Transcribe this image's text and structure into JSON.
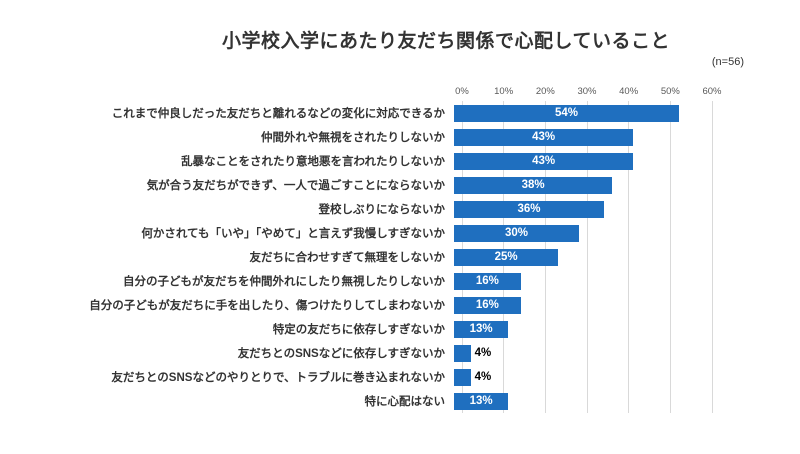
{
  "title": "小学校入学にあたり友だち関係で心配していること",
  "n_label": "(n=56)",
  "chart_data": {
    "type": "bar",
    "orientation": "horizontal",
    "title": "小学校入学にあたり友だち関係で心配していること",
    "sample_size_label": "(n=56)",
    "categories": [
      "これまで仲良しだった友だちと離れるなどの変化に対応できるか",
      "仲間外れや無視をされたりしないか",
      "乱暴なことをされたり意地悪を言われたりしないか",
      "気が合う友だちができず、一人で過ごすことにならないか",
      "登校しぶりにならないか",
      "何かされても「いや」「やめて」と言えず我慢しすぎないか",
      "友だちに合わせすぎて無理をしないか",
      "自分の子どもが友だちを仲間外れにしたり無視したりしないか",
      "自分の子どもが友だちに手を出したり、傷つけたりしてしまわないか",
      "特定の友だちに依存しすぎないか",
      "友だちとのSNSなどに依存しすぎないか",
      "友だちとのSNSなどのやりとりで、トラブルに巻き込まれないか",
      "特に心配はない"
    ],
    "values": [
      54,
      43,
      43,
      38,
      36,
      30,
      25,
      16,
      16,
      13,
      4,
      4,
      13
    ],
    "value_labels": [
      "54%",
      "43%",
      "43%",
      "38%",
      "36%",
      "30%",
      "25%",
      "16%",
      "16%",
      "13%",
      "4%",
      "4%",
      "13%"
    ],
    "xlim": [
      0,
      60
    ],
    "x_ticks": [
      "0%",
      "10%",
      "20%",
      "30%",
      "40%",
      "50%",
      "60%"
    ],
    "grid": true,
    "legend": false,
    "bar_color": "#1f6fbf",
    "grid_color": "#d9d9d9",
    "tick_color": "#595959",
    "label_color_inside": "#ffffff",
    "label_color_outside": "#000000"
  }
}
